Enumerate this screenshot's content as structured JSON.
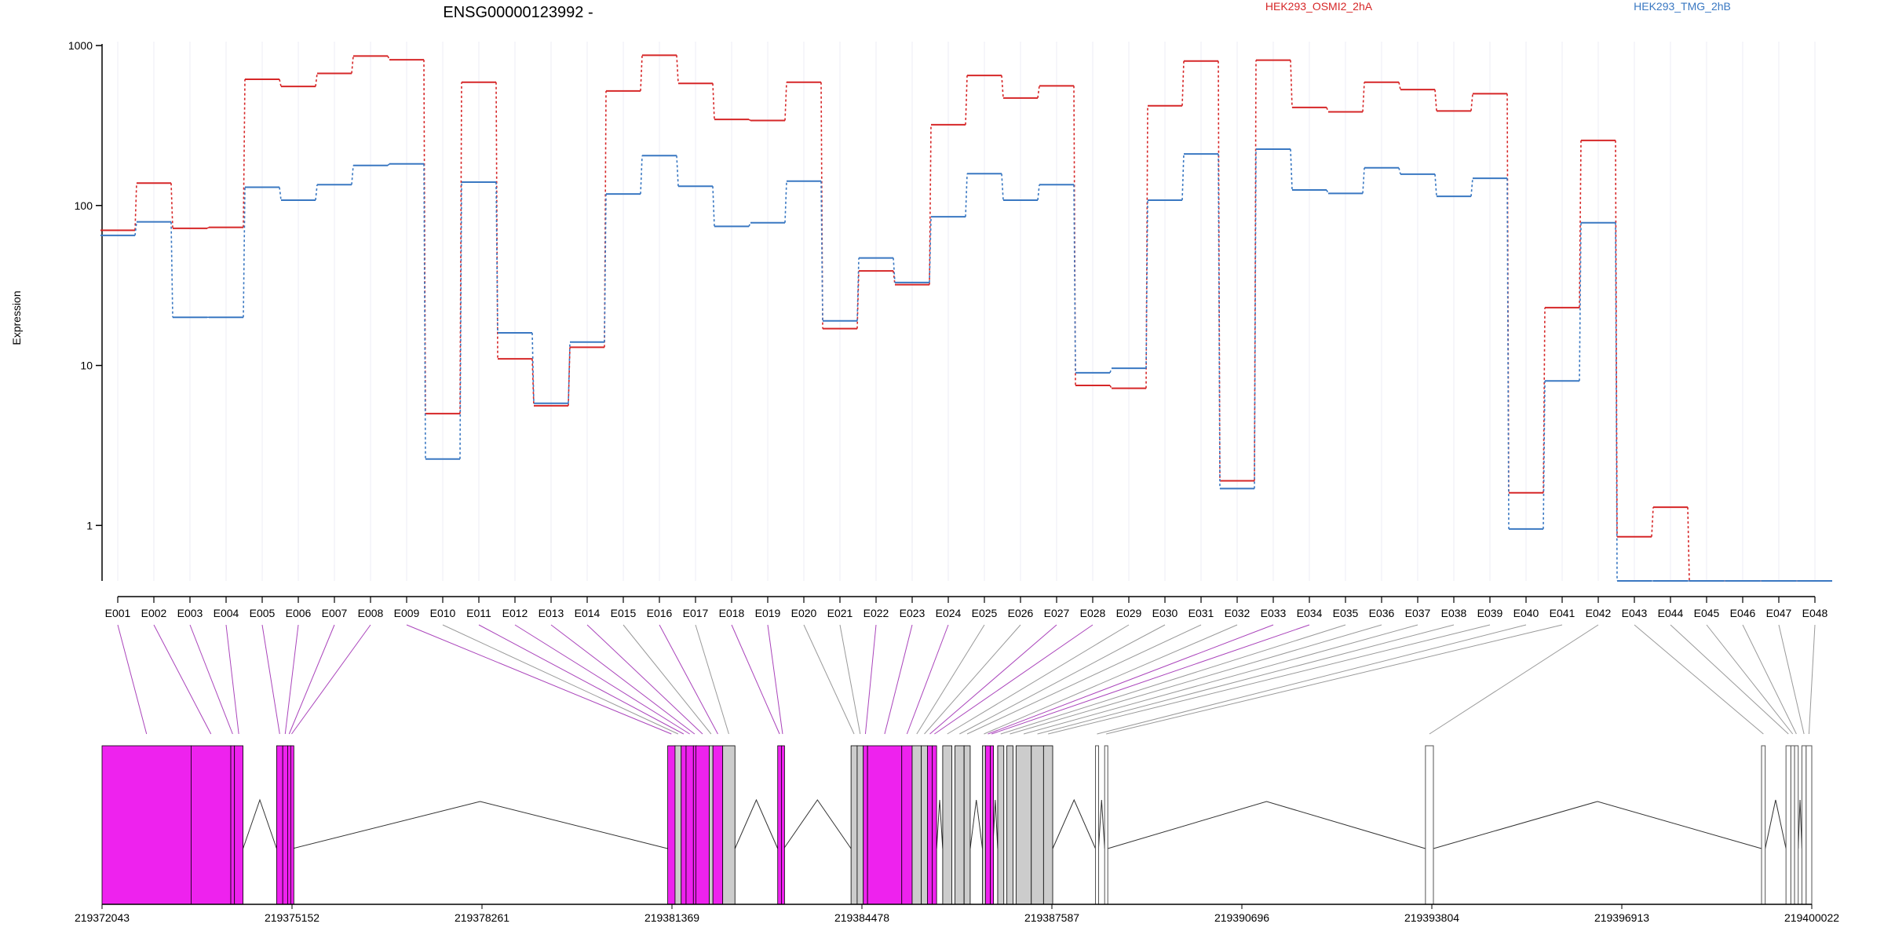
{
  "chart_data": {
    "type": "line",
    "title": "ENSG00000123992 -",
    "ylabel": "Expression",
    "xlabel": "",
    "y_scale": "log",
    "y_ticks": [
      1,
      10,
      100,
      1000
    ],
    "ylim": [
      0.45,
      1000
    ],
    "grid": "vertical",
    "legend_placement": "top",
    "categories": [
      "E001",
      "E002",
      "E003",
      "E004",
      "E005",
      "E006",
      "E007",
      "E008",
      "E009",
      "E010",
      "E011",
      "E012",
      "E013",
      "E014",
      "E015",
      "E016",
      "E017",
      "E018",
      "E019",
      "E020",
      "E021",
      "E022",
      "E023",
      "E024",
      "E025",
      "E026",
      "E027",
      "E028",
      "E029",
      "E030",
      "E031",
      "E032",
      "E033",
      "E034",
      "E035",
      "E036",
      "E037",
      "E038",
      "E039",
      "E040",
      "E041",
      "E042",
      "E043",
      "E044",
      "E045",
      "E046",
      "E047",
      "E048"
    ],
    "series": [
      {
        "name": "HEK293_OSMI2_2hA",
        "color": "#d62728",
        "values": [
          70,
          138,
          72,
          73,
          615,
          555,
          670,
          860,
          815,
          5,
          590,
          11,
          5.6,
          13,
          520,
          870,
          580,
          345,
          340,
          590,
          17,
          39,
          32,
          320,
          650,
          470,
          560,
          7.5,
          7.2,
          420,
          800,
          1.9,
          810,
          410,
          385,
          590,
          530,
          390,
          500,
          1.6,
          23,
          255,
          0.85,
          1.3,
          0.45,
          0.45,
          0.45,
          0.45
        ]
      },
      {
        "name": "HEK293_TMG_2hB",
        "color": "#3a78c2",
        "values": [
          65,
          79,
          20,
          20,
          130,
          108,
          135,
          178,
          182,
          2.6,
          140,
          16,
          5.8,
          14,
          118,
          205,
          132,
          74,
          78,
          142,
          19,
          47,
          33,
          85,
          158,
          108,
          135,
          9,
          9.6,
          108,
          210,
          1.7,
          225,
          125,
          119,
          172,
          157,
          114,
          148,
          0.95,
          8,
          78,
          0.45,
          0.45,
          0.45,
          0.45,
          0.45,
          0.45
        ]
      }
    ],
    "genomic_ticks": [
      "219372043",
      "219375152",
      "219378261",
      "219381369",
      "219384478",
      "219387587",
      "219390696",
      "219393804",
      "219396913",
      "219400022"
    ],
    "gene_range": [
      219372043,
      219400022
    ],
    "exon_colors": {
      "significant": "#ee22ee",
      "normal": "#cccccc",
      "outline": "#ffffff"
    },
    "exons": [
      {
        "id": "E001",
        "start": 219372043,
        "end": 219373500,
        "sig": true
      },
      {
        "id": "E002",
        "start": 219373500,
        "end": 219374150,
        "sig": true
      },
      {
        "id": "E003",
        "start": 219374150,
        "end": 219374210,
        "sig": true
      },
      {
        "id": "E004",
        "start": 219374210,
        "end": 219374350,
        "sig": true
      },
      {
        "id": "E005",
        "start": 219374900,
        "end": 219375000,
        "sig": true
      },
      {
        "id": "E006",
        "start": 219375000,
        "end": 219375080,
        "sig": true
      },
      {
        "id": "E007",
        "start": 219375080,
        "end": 219375130,
        "sig": true
      },
      {
        "id": "E008",
        "start": 219375130,
        "end": 219375160,
        "sig": true
      },
      {
        "id": "E009",
        "start": 219381300,
        "end": 219381420,
        "sig": true
      },
      {
        "id": "E010",
        "start": 219381420,
        "end": 219381520,
        "sig": false
      },
      {
        "id": "E011",
        "start": 219381520,
        "end": 219381600,
        "sig": true
      },
      {
        "id": "E012",
        "start": 219381600,
        "end": 219381720,
        "sig": true
      },
      {
        "id": "E013",
        "start": 219381720,
        "end": 219381760,
        "sig": true
      },
      {
        "id": "E014",
        "start": 219381760,
        "end": 219381980,
        "sig": true
      },
      {
        "id": "E015",
        "start": 219381980,
        "end": 219382040,
        "sig": false
      },
      {
        "id": "E016",
        "start": 219382040,
        "end": 219382200,
        "sig": true
      },
      {
        "id": "E017",
        "start": 219382200,
        "end": 219382400,
        "sig": false
      },
      {
        "id": "E018",
        "start": 219383100,
        "end": 219383160,
        "sig": true
      },
      {
        "id": "E019",
        "start": 219383160,
        "end": 219383200,
        "sig": true
      },
      {
        "id": "E020",
        "start": 219384300,
        "end": 219384400,
        "sig": false
      },
      {
        "id": "E021",
        "start": 219384400,
        "end": 219384500,
        "sig": false
      },
      {
        "id": "E022",
        "start": 219384500,
        "end": 219384570,
        "sig": true
      },
      {
        "id": "E023",
        "start": 219384570,
        "end": 219385130,
        "sig": true
      },
      {
        "id": "E024",
        "start": 219385130,
        "end": 219385300,
        "sig": true
      },
      {
        "id": "E025",
        "start": 219385300,
        "end": 219385450,
        "sig": false
      },
      {
        "id": "E026",
        "start": 219385450,
        "end": 219385550,
        "sig": false
      },
      {
        "id": "E027",
        "start": 219385550,
        "end": 219385630,
        "sig": true
      },
      {
        "id": "E028",
        "start": 219385630,
        "end": 219385700,
        "sig": true
      },
      {
        "id": "E029",
        "start": 219385800,
        "end": 219385950,
        "sig": false
      },
      {
        "id": "E030",
        "start": 219386000,
        "end": 219386150,
        "sig": false
      },
      {
        "id": "E031",
        "start": 219386150,
        "end": 219386250,
        "sig": false
      },
      {
        "id": "E032",
        "start": 219386450,
        "end": 219386500,
        "sig": false
      },
      {
        "id": "E033",
        "start": 219386500,
        "end": 219386580,
        "sig": true
      },
      {
        "id": "E034",
        "start": 219386580,
        "end": 219386620,
        "sig": true
      },
      {
        "id": "E035",
        "start": 219386700,
        "end": 219386800,
        "sig": false
      },
      {
        "id": "E036",
        "start": 219386850,
        "end": 219386950,
        "sig": false
      },
      {
        "id": "E037",
        "start": 219387000,
        "end": 219387250,
        "sig": false
      },
      {
        "id": "E038",
        "start": 219387250,
        "end": 219387450,
        "sig": false
      },
      {
        "id": "E039",
        "start": 219387450,
        "end": 219387600,
        "sig": false
      },
      {
        "id": "E040",
        "start": 219388300,
        "end": 219388350,
        "sig": false,
        "empty": true
      },
      {
        "id": "E041",
        "start": 219388450,
        "end": 219388500,
        "sig": false,
        "empty": true
      },
      {
        "id": "E042",
        "start": 219393700,
        "end": 219393830,
        "sig": false,
        "empty": true
      },
      {
        "id": "E043",
        "start": 219399200,
        "end": 219399260,
        "sig": false,
        "empty": true
      },
      {
        "id": "E044",
        "start": 219399600,
        "end": 219399680,
        "sig": false,
        "empty": true
      },
      {
        "id": "E045",
        "start": 219399680,
        "end": 219399740,
        "sig": false,
        "empty": true
      },
      {
        "id": "E046",
        "start": 219399740,
        "end": 219399800,
        "sig": false,
        "empty": true
      },
      {
        "id": "E047",
        "start": 219399860,
        "end": 219399930,
        "sig": false,
        "empty": true
      },
      {
        "id": "E048",
        "start": 219399930,
        "end": 219400022,
        "sig": false,
        "empty": true
      }
    ]
  }
}
